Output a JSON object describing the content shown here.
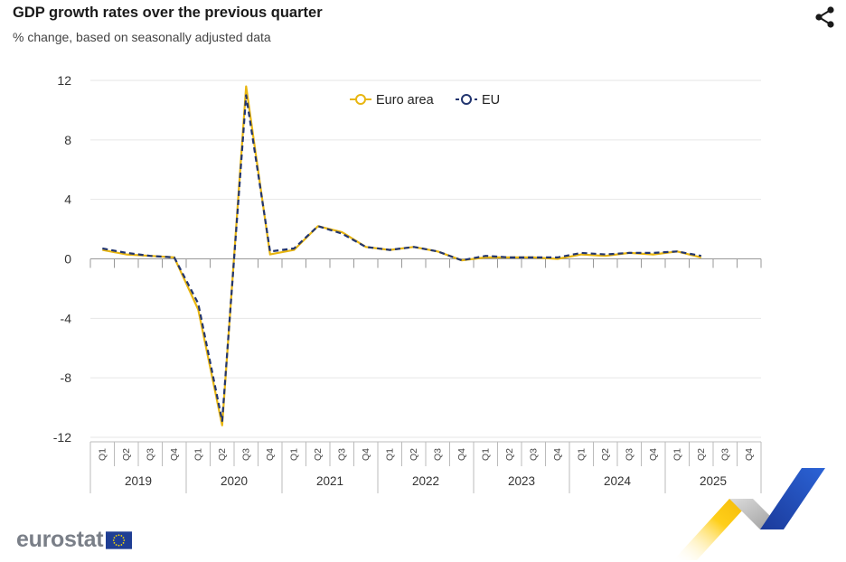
{
  "header": {
    "title": "GDP growth rates over the previous quarter",
    "subtitle": "% change, based on seasonally adjusted data"
  },
  "icons": {
    "share": "share-icon",
    "flag": "eu-flag-icon"
  },
  "logo": {
    "text": "eurostat"
  },
  "colors": {
    "euro_area": "#e8b611",
    "eu": "#22356f",
    "grid": "#e6e6e6",
    "axis": "#bbbbbb"
  },
  "chart_data": {
    "type": "line",
    "title": "GDP growth rates over the previous quarter",
    "subtitle": "% change, based on seasonally adjusted data",
    "ylim": [
      -12,
      12
    ],
    "yticks": [
      12,
      8,
      4,
      0,
      -4,
      -8,
      -12
    ],
    "grid": true,
    "legend_position": "top-center",
    "x_quarters": [
      "Q1",
      "Q2",
      "Q3",
      "Q4",
      "Q1",
      "Q2",
      "Q3",
      "Q4",
      "Q1",
      "Q2",
      "Q3",
      "Q4",
      "Q1",
      "Q2",
      "Q3",
      "Q4",
      "Q1",
      "Q2",
      "Q3",
      "Q4",
      "Q1",
      "Q2",
      "Q3",
      "Q4",
      "Q1",
      "Q2",
      "Q3",
      "Q4"
    ],
    "x_years": [
      "2019",
      "2020",
      "2021",
      "2022",
      "2023",
      "2024",
      "2025"
    ],
    "series": [
      {
        "name": "Euro area",
        "color": "#e8b611",
        "style": "solid",
        "values": [
          0.6,
          0.3,
          0.2,
          0.1,
          -3.4,
          -11.2,
          11.6,
          0.3,
          0.6,
          2.2,
          1.8,
          0.8,
          0.6,
          0.8,
          0.5,
          -0.1,
          0.1,
          0.1,
          0.1,
          0.0,
          0.3,
          0.2,
          0.4,
          0.3,
          0.5,
          0.1,
          null,
          null
        ]
      },
      {
        "name": "EU",
        "color": "#22356f",
        "style": "dashed",
        "values": [
          0.7,
          0.4,
          0.2,
          0.1,
          -3.0,
          -10.9,
          11.0,
          0.5,
          0.7,
          2.2,
          1.7,
          0.8,
          0.6,
          0.8,
          0.5,
          -0.1,
          0.2,
          0.1,
          0.1,
          0.1,
          0.4,
          0.3,
          0.4,
          0.4,
          0.5,
          0.2,
          null,
          null
        ]
      }
    ]
  }
}
